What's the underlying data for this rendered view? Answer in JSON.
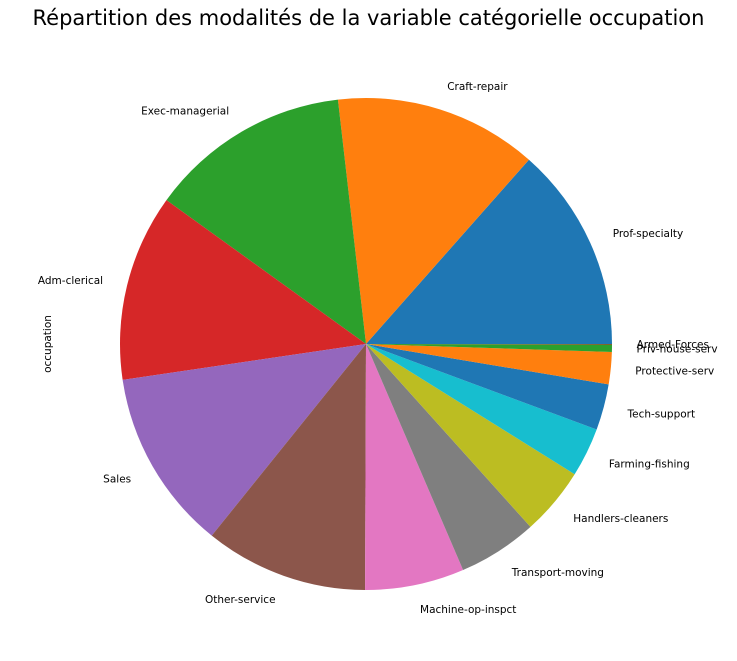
{
  "chart_data": {
    "type": "pie",
    "title": "Répartition des modalités de la variable catégorielle occupation",
    "ylabel": "occupation",
    "start_angle_deg": 0,
    "direction": "counterclockwise",
    "slices": [
      {
        "label": "Prof-specialty",
        "value": 4140,
        "color": "#1f77b4"
      },
      {
        "label": "Craft-repair",
        "value": 4099,
        "color": "#ff7f0e"
      },
      {
        "label": "Exec-managerial",
        "value": 4066,
        "color": "#2ca02c"
      },
      {
        "label": "Adm-clerical",
        "value": 3770,
        "color": "#d62728"
      },
      {
        "label": "Sales",
        "value": 3650,
        "color": "#9467bd"
      },
      {
        "label": "Other-service",
        "value": 3295,
        "color": "#8c564b"
      },
      {
        "label": "Machine-op-inspct",
        "value": 2002,
        "color": "#e377c2"
      },
      {
        "label": "Transport-moving",
        "value": 1597,
        "color": "#7f7f7f"
      },
      {
        "label": "Handlers-cleaners",
        "value": 1370,
        "color": "#bcbd22"
      },
      {
        "label": "Farming-fishing",
        "value": 994,
        "color": "#17becf"
      },
      {
        "label": "Tech-support",
        "value": 928,
        "color": "#1f77b4"
      },
      {
        "label": "Protective-serv",
        "value": 649,
        "color": "#ff7f0e"
      },
      {
        "label": "Priv-house-serv",
        "value": 149,
        "color": "#2ca02c"
      },
      {
        "label": "Armed-Forces",
        "value": 9,
        "color": "#d62728"
      }
    ]
  }
}
